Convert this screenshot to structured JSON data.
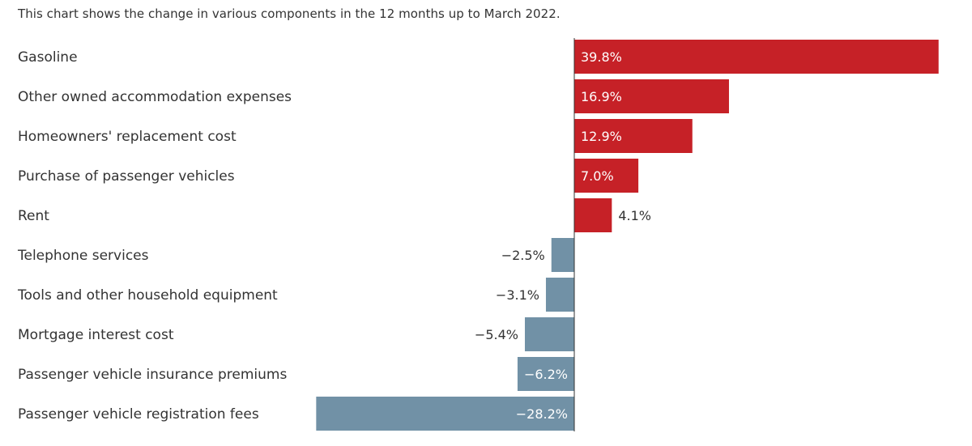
{
  "subtitle": "This chart shows the change in various components in the 12 months up to March 2022.",
  "colors": {
    "positive": "#c62127",
    "negative": "#7191a6",
    "axis": "#333333",
    "label_text": "#333333",
    "inside_label_text": "#ffffff"
  },
  "chart_data": {
    "type": "bar",
    "orientation": "horizontal",
    "unit": "%",
    "categories": [
      "Gasoline",
      "Other owned accommodation expenses",
      "Homeowners' replacement cost",
      "Purchase of passenger vehicles",
      "Rent",
      "Telephone services",
      "Tools and other household equipment",
      "Mortgage interest cost",
      "Passenger vehicle insurance premiums",
      "Passenger vehicle registration fees"
    ],
    "values": [
      39.8,
      16.9,
      12.9,
      7.0,
      4.1,
      -2.5,
      -3.1,
      -5.4,
      -6.2,
      -28.2
    ],
    "value_labels": [
      "39.8%",
      "16.9%",
      "12.9%",
      "7.0%",
      "4.1%",
      "−2.5%",
      "−3.1%",
      "−5.4%",
      "−6.2%",
      "−28.2%"
    ],
    "xlim": [
      -28.2,
      39.8
    ],
    "grid": false,
    "legend": "none"
  }
}
